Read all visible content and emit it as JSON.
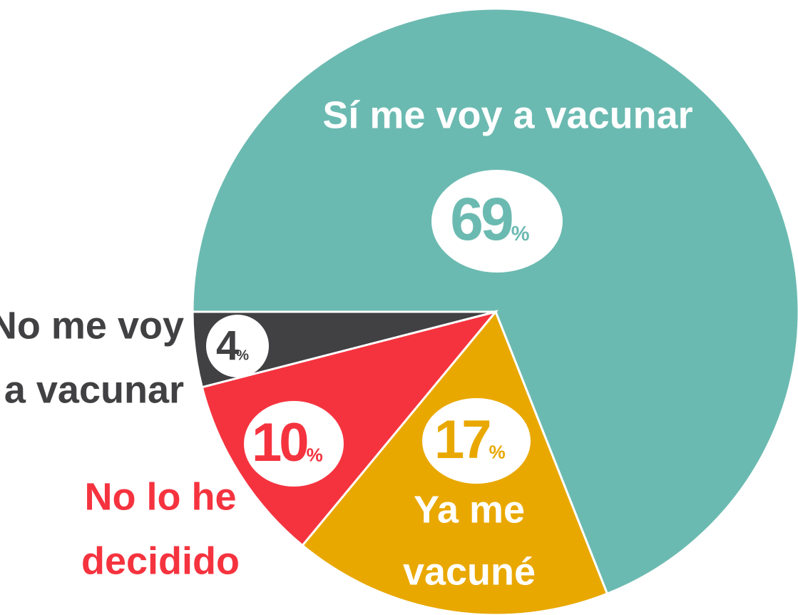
{
  "chart_data": {
    "type": "pie",
    "categories": [
      [
        "Sí me voy a vacunar"
      ],
      [
        "Ya me",
        "vacuné"
      ],
      [
        "No lo he",
        "decidido"
      ],
      [
        "No me voy",
        "a vacunar"
      ]
    ],
    "values": [
      69,
      17,
      10,
      4
    ],
    "unit": "%",
    "colors": [
      "#6bbab1",
      "#e9a800",
      "#f5333f",
      "#414042"
    ],
    "label_colors": [
      "#ffffff",
      "#ffffff",
      "#f5333f",
      "#414042"
    ]
  }
}
